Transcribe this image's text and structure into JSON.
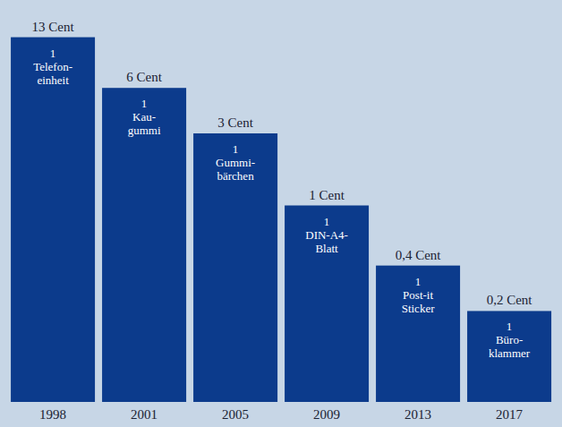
{
  "chart_data": {
    "type": "bar",
    "categories": [
      "1998",
      "2001",
      "2005",
      "2009",
      "2013",
      "2017"
    ],
    "values": [
      13,
      6,
      3,
      1,
      0.4,
      0.2
    ],
    "value_labels": [
      "13 Cent",
      "6 Cent",
      "3 Cent",
      "1 Cent",
      "0,4 Cent",
      "0,2 Cent"
    ],
    "annotations": [
      [
        "1",
        "Telefon-",
        "einheit"
      ],
      [
        "1",
        "Kau-",
        "gummi"
      ],
      [
        "1",
        "Gummi-",
        "bärchen"
      ],
      [
        "1",
        "DIN-A4-",
        "Blatt"
      ],
      [
        "1",
        "Post-it",
        "Sticker"
      ],
      [
        "1",
        "Büro-",
        "klammer"
      ]
    ],
    "color": "#0c3b8c",
    "log": "y",
    "ylim": [
      0.05,
      20
    ],
    "tick_labels": "x",
    "data_labels": true,
    "grid": false
  }
}
